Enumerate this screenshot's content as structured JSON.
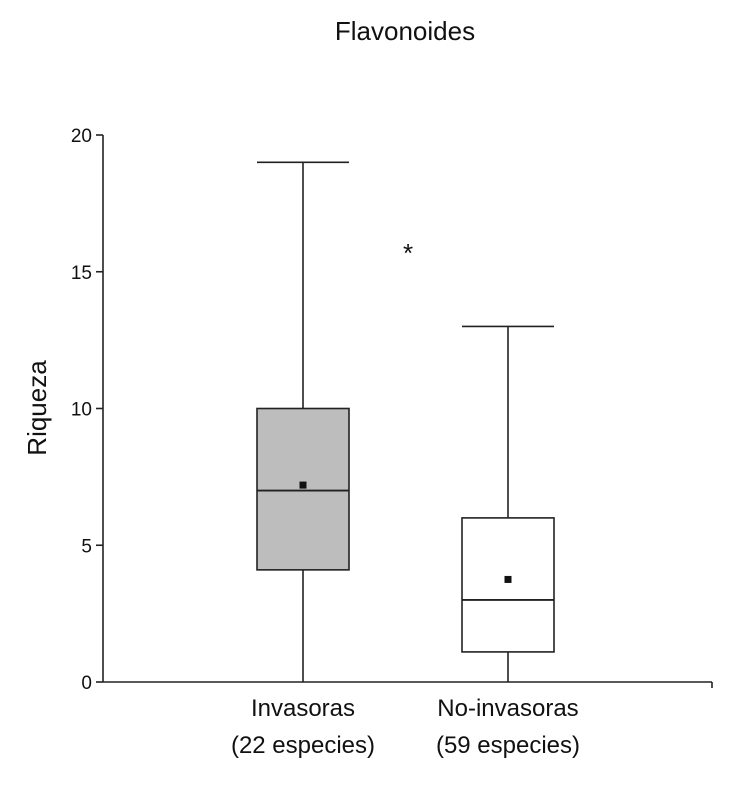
{
  "chart_data": {
    "type": "box",
    "title": "Flavonoides",
    "ylabel": "Riqueza",
    "xlabel": "",
    "ylim": [
      0,
      20
    ],
    "yticks": [
      0,
      5,
      10,
      15,
      20
    ],
    "grid": false,
    "significance_marker": "*",
    "categories": [
      {
        "line1": "Invasoras",
        "line2": "(22 especies)"
      },
      {
        "line1": "No-invasoras",
        "line2": "(59 especies)"
      }
    ],
    "series": [
      {
        "min": 0,
        "q1": 4.1,
        "median": 7.0,
        "q3": 10.0,
        "max": 19.0,
        "mean": 7.2,
        "fill": "#bdbdbd"
      },
      {
        "min": 0,
        "q1": 1.1,
        "median": 3.0,
        "q3": 6.0,
        "max": 13.0,
        "mean": 3.75,
        "fill": "#ffffff"
      }
    ]
  }
}
